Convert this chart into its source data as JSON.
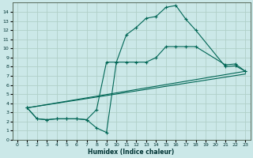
{
  "background_color": "#cbe8e8",
  "grid_color": "#b0d0c8",
  "line_color": "#006655",
  "xlim": [
    -0.5,
    23.5
  ],
  "ylim": [
    0,
    15
  ],
  "xlabel": "Humidex (Indice chaleur)",
  "xticks": [
    0,
    1,
    2,
    3,
    4,
    5,
    6,
    7,
    8,
    9,
    10,
    11,
    12,
    13,
    14,
    15,
    16,
    17,
    18,
    19,
    20,
    21,
    22,
    23
  ],
  "yticks": [
    0,
    1,
    2,
    3,
    4,
    5,
    6,
    7,
    8,
    9,
    10,
    11,
    12,
    13,
    14
  ],
  "curve1_x": [
    1,
    2,
    3,
    4,
    5,
    6,
    7,
    8,
    9,
    10,
    11,
    12,
    13,
    14,
    15,
    16,
    17,
    18,
    21,
    22,
    23
  ],
  "curve1_y": [
    3.5,
    2.3,
    2.2,
    2.3,
    2.3,
    2.3,
    2.2,
    1.3,
    0.8,
    8.5,
    11.5,
    12.3,
    13.3,
    13.5,
    14.5,
    14.7,
    13.2,
    12.0,
    8.0,
    8.1,
    7.5
  ],
  "curve2_x": [
    1,
    2,
    3,
    4,
    5,
    6,
    7,
    8,
    9,
    10,
    11,
    12,
    13,
    14,
    15,
    16,
    17,
    18,
    21,
    22,
    23
  ],
  "curve2_y": [
    3.5,
    2.3,
    2.2,
    2.3,
    2.3,
    2.3,
    2.2,
    3.3,
    8.5,
    8.5,
    8.5,
    8.5,
    8.5,
    9.0,
    10.2,
    10.2,
    10.2,
    10.2,
    8.2,
    8.3,
    7.5
  ],
  "curve3_x": [
    1,
    23
  ],
  "curve3_y": [
    3.5,
    7.5
  ],
  "curve4_x": [
    1,
    23
  ],
  "curve4_y": [
    3.5,
    7.2
  ]
}
